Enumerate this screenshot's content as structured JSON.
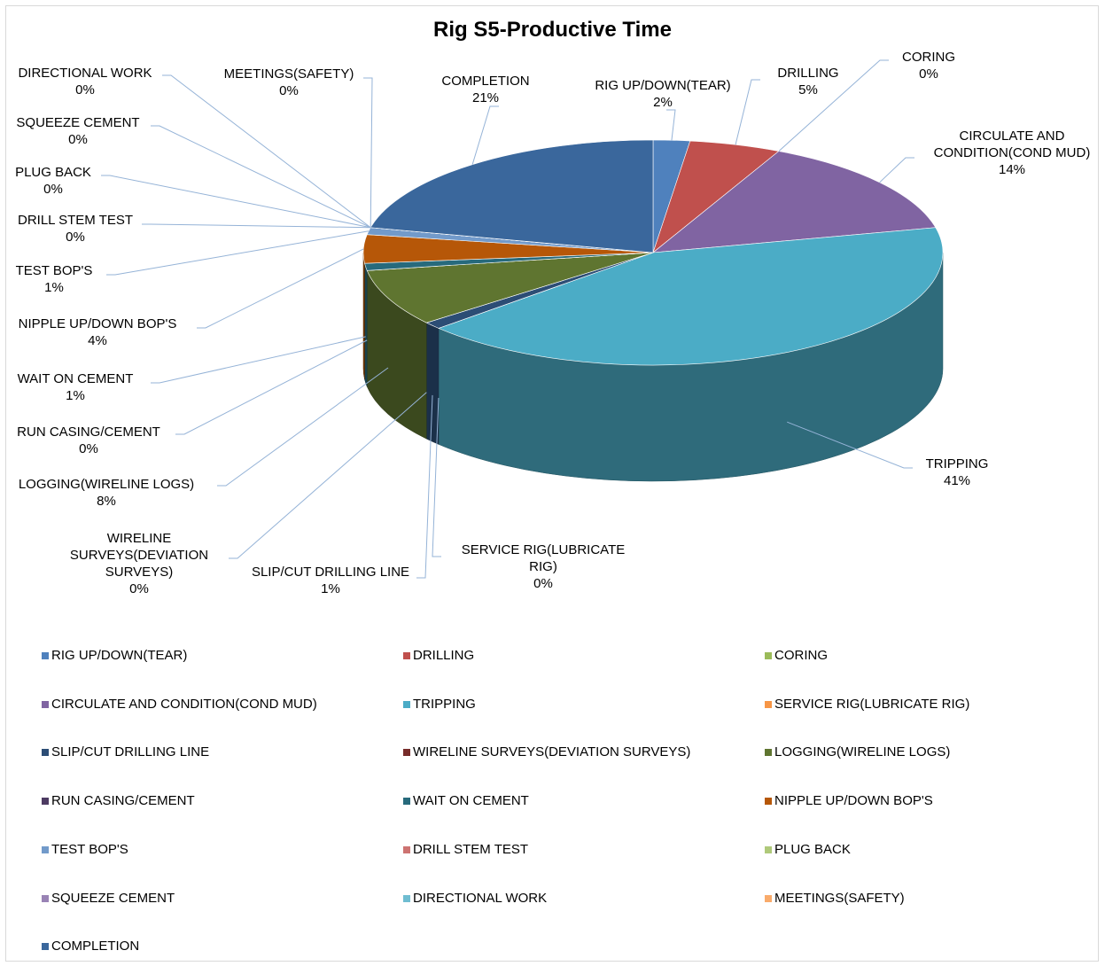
{
  "chart_data": {
    "type": "pie",
    "title": "Rig S5-Productive Time",
    "categories": [
      "RIG UP/DOWN(TEAR)",
      "DRILLING",
      "CORING",
      "CIRCULATE AND CONDITION(COND MUD)",
      "TRIPPING",
      "SERVICE RIG(LUBRICATE RIG)",
      "SLIP/CUT DRILLING LINE",
      "WIRELINE SURVEYS(DEVIATION SURVEYS)",
      "LOGGING(WIRELINE LOGS)",
      "RUN CASING/CEMENT",
      "WAIT ON CEMENT",
      "NIPPLE UP/DOWN BOP'S",
      "TEST BOP'S",
      "DRILL STEM TEST",
      "PLUG BACK",
      "SQUEEZE CEMENT",
      "DIRECTIONAL WORK",
      "MEETINGS(SAFETY)",
      "COMPLETION"
    ],
    "values": [
      2,
      5,
      0,
      14,
      41,
      0,
      1,
      0,
      8,
      0,
      1,
      4,
      1,
      0,
      0,
      0,
      0,
      0,
      21
    ],
    "value_labels": [
      "2%",
      "5%",
      "0%",
      "14%",
      "41%",
      "0%",
      "1%",
      "0%",
      "8%",
      "0%",
      "1%",
      "4%",
      "1%",
      "0%",
      "0%",
      "0%",
      "0%",
      "0%",
      "21%"
    ],
    "colors": [
      "#4F81BD",
      "#C0504D",
      "#9BBB59",
      "#8064A2",
      "#4BACC6",
      "#F79646",
      "#2C4D75",
      "#772C2A",
      "#5F7530",
      "#4D3B62",
      "#276A7C",
      "#B65708",
      "#729ACA",
      "#CD7371",
      "#AFC97A",
      "#9983B5",
      "#6FBDD1",
      "#F9AB6B",
      "#3A679C"
    ],
    "legend": "bottom"
  }
}
